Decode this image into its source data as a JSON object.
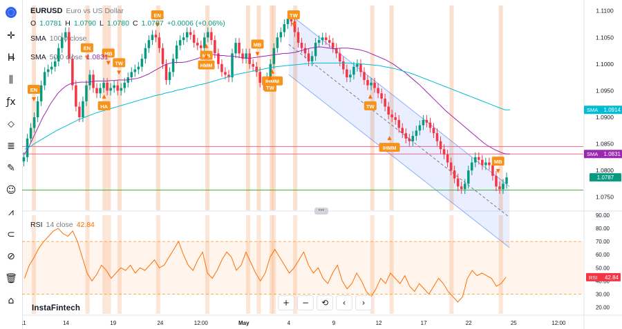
{
  "toolbar": {
    "items": [
      {
        "name": "crosshair-icon",
        "glyph": "✛"
      },
      {
        "name": "trend-line-icon",
        "glyph": "H̶"
      },
      {
        "name": "candles-icon",
        "glyph": "⫼"
      },
      {
        "name": "fx-icon",
        "glyph": "ƒx"
      },
      {
        "name": "shapes-icon",
        "glyph": "⬦"
      },
      {
        "name": "fib-icon",
        "glyph": "≣"
      },
      {
        "name": "brush-icon",
        "glyph": "✎"
      },
      {
        "name": "emoji-icon",
        "glyph": "☺"
      },
      {
        "name": "pattern-icon",
        "glyph": "⩘"
      },
      {
        "name": "magnet-icon",
        "glyph": "⊂"
      },
      {
        "name": "eye-off-icon",
        "glyph": "⊘"
      },
      {
        "name": "trash-icon",
        "glyph": "🗑"
      },
      {
        "name": "lock-icon",
        "glyph": "⌂"
      }
    ]
  },
  "legend": {
    "symbol": "EURUSD",
    "description": "Euro vs US Dollar",
    "o_label": "O",
    "o_value": "1.0781",
    "h_label": "H",
    "h_value": "1.0790",
    "l_label": "L",
    "l_value": "1.0780",
    "c_label": "C",
    "c_value": "1.0787",
    "change": "+0.0006 (+0.06%)",
    "sma100_label": "SMA",
    "sma100_params": "100 0 close",
    "sma50_label": "SMA",
    "sma50_params": "50 0 close",
    "sma50_value": "1.0831"
  },
  "rsi_legend": {
    "label": "RSI",
    "params": "14 close",
    "value": "42.84"
  },
  "brand": "InstaFintech",
  "nav": {
    "plus": "+",
    "minus": "−",
    "reset": "⟲",
    "left": "‹",
    "right": "›"
  },
  "colors": {
    "up": "#089981",
    "down": "#f23645",
    "sma50": "#9c27b0",
    "sma100": "#00bcd4",
    "rsi": "#ff6d00",
    "signal_fill": "#f7c7a8",
    "signal_label": "#f7931a",
    "channel": "#2962ff",
    "support": "#3eae2f",
    "resistance": "#f06292"
  },
  "chart_data": {
    "type": "candlestick",
    "price_axis": {
      "min": 1.0725,
      "max": 1.111,
      "ticks": [
        "1.1100",
        "1.1050",
        "1.1000",
        "1.0950",
        "1.0900",
        "1.0850",
        "1.0800",
        "1.0750"
      ]
    },
    "price_badges": [
      {
        "label": "SMA",
        "value": "1.0914",
        "color": "#00bcd4",
        "price": 1.0914
      },
      {
        "label": "SMA",
        "value": "1.0831",
        "color": "#9c27b0",
        "price": 1.0831
      },
      {
        "label": "",
        "value": "1.0787",
        "color": "#089981",
        "price": 1.0787
      }
    ],
    "x_axis_labels": [
      "11",
      "14",
      "19",
      "24",
      "12:00",
      "May",
      "4",
      "9",
      "12",
      "17",
      "22",
      "25",
      "12:00"
    ],
    "x_label_at": [
      0,
      20,
      42,
      64,
      83,
      103,
      124,
      145,
      166,
      187,
      208,
      229,
      250
    ],
    "x_span": 262,
    "closes": [
      1.0825,
      1.086,
      1.088,
      1.09,
      1.093,
      1.096,
      1.0985,
      1.099,
      1.0995,
      1.1005,
      1.103,
      1.105,
      1.106,
      1.101,
      1.096,
      1.092,
      1.09,
      1.093,
      1.096,
      1.098,
      1.0955,
      1.0945,
      1.0955,
      1.0965,
      1.095,
      1.0955,
      1.096,
      1.095,
      1.0955,
      1.0965,
      1.0975,
      1.0985,
      1.099,
      1.0995,
      1.101,
      1.103,
      1.1045,
      1.1055,
      1.105,
      1.103,
      1.1,
      1.097,
      1.0985,
      1.101,
      1.1035,
      1.1045,
      1.105,
      1.106,
      1.1055,
      1.104,
      1.1035,
      1.103,
      1.105,
      1.106,
      1.1045,
      1.102,
      1.1,
      1.0985,
      1.098,
      1.0975,
      1.102,
      1.104,
      1.102,
      1.101,
      1.102,
      1.1,
      1.0995,
      1.0985,
      1.0965,
      1.096,
      1.0975,
      1.1,
      1.103,
      1.105,
      1.106,
      1.1075,
      1.1085,
      1.108,
      1.106,
      1.104,
      1.103,
      1.102,
      1.1005,
      1.1015,
      1.104,
      1.1045,
      1.105,
      1.1045,
      1.104,
      1.103,
      1.102,
      1.1005,
      1.099,
      1.0975,
      1.098,
      1.0995,
      1.1,
      1.0985,
      1.097,
      1.096,
      1.0965,
      1.0955,
      1.0945,
      1.0935,
      1.092,
      1.0905,
      1.09,
      1.0895,
      1.088,
      1.087,
      1.086,
      1.0855,
      1.0865,
      1.0875,
      1.0885,
      1.0895,
      1.089,
      1.088,
      1.087,
      1.0855,
      1.084,
      1.083,
      1.0815,
      1.08,
      1.0785,
      1.077,
      1.0765,
      1.0775,
      1.08,
      1.0815,
      1.0825,
      1.082,
      1.081,
      1.0815,
      1.081,
      1.079,
      1.077,
      1.0765,
      1.0775,
      1.0787
    ],
    "sma50": [
      1.083,
      1.084,
      1.0855,
      1.087,
      1.0885,
      1.09,
      1.0912,
      1.0925,
      1.0935,
      1.0945,
      1.0952,
      1.0958,
      1.0962,
      1.0964,
      1.0965,
      1.0966,
      1.0966,
      1.0966,
      1.0967,
      1.0968,
      1.0968,
      1.0968,
      1.0968,
      1.0969,
      1.0969,
      1.097,
      1.097,
      1.097,
      1.0971,
      1.0972,
      1.0973,
      1.0975,
      1.0978,
      1.0981,
      1.0985,
      1.0989,
      1.0993,
      1.0997,
      1.1,
      1.1002,
      1.1003,
      1.1003,
      1.1003,
      1.1004,
      1.1006,
      1.1008,
      1.101,
      1.1013,
      1.1016,
      1.1018,
      1.1018,
      1.1017,
      1.1016,
      1.1016,
      1.1015,
      1.1015,
      1.1014,
      1.1013,
      1.1012,
      1.1011,
      1.1011,
      1.1012,
      1.1013,
      1.1014,
      1.1015,
      1.1016,
      1.1017,
      1.1018,
      1.1019,
      1.102,
      1.102,
      1.1021,
      1.1022,
      1.1024,
      1.1026,
      1.1028,
      1.103,
      1.1031,
      1.1032,
      1.1032,
      1.1031,
      1.103,
      1.1029,
      1.1029,
      1.103,
      1.103,
      1.103,
      1.1029,
      1.1028,
      1.1027,
      1.1025,
      1.1023,
      1.102,
      1.1017,
      1.1014,
      1.1011,
      1.1008,
      1.1004,
      1.1,
      1.0995,
      1.099,
      1.0985,
      1.0979,
      1.0973,
      1.0967,
      1.0961,
      1.0954,
      1.0947,
      1.094,
      1.0933,
      1.0926,
      1.0919,
      1.0912,
      1.0906,
      1.09,
      1.0894,
      1.0888,
      1.0882,
      1.0876,
      1.087,
      1.0864,
      1.0858,
      1.0852,
      1.0847,
      1.0843,
      1.0839,
      1.0836,
      1.0833,
      1.0831,
      1.0831
    ],
    "sma100": [
      1.084,
      1.0845,
      1.0852,
      1.0858,
      1.0864,
      1.087,
      1.0876,
      1.0881,
      1.0886,
      1.0891,
      1.0896,
      1.09,
      1.0904,
      1.0908,
      1.0911,
      1.0914,
      1.0917,
      1.092,
      1.0923,
      1.0926,
      1.0929,
      1.0932,
      1.0935,
      1.0938,
      1.0941,
      1.0943,
      1.0946,
      1.0948,
      1.0951,
      1.0953,
      1.0956,
      1.0958,
      1.0961,
      1.0963,
      1.0966,
      1.0969,
      1.0972,
      1.0975,
      1.0978,
      1.0981,
      1.0983,
      1.0985,
      1.0987,
      1.0989,
      1.0991,
      1.0993,
      1.0995,
      1.0996,
      1.0997,
      1.0998,
      1.0999,
      1.1,
      1.1001,
      1.1002,
      1.1002,
      1.1002,
      1.1002,
      1.1002,
      1.1002,
      1.1002,
      1.1001,
      1.1001,
      1.1,
      1.0999,
      1.0998,
      1.0997,
      1.0995,
      1.0993,
      1.0991,
      1.0988,
      1.0985,
      1.0982,
      1.0978,
      1.0974,
      1.097,
      1.0966,
      1.0962,
      1.0958,
      1.0954,
      1.095,
      1.0946,
      1.0942,
      1.0938,
      1.0934,
      1.093,
      1.0926,
      1.0922,
      1.0918,
      1.0914,
      1.0914
    ],
    "rsi": {
      "ylim": [
        15,
        90
      ],
      "ticks": [
        "90.00",
        "80.00",
        "70.00",
        "60.00",
        "50.00",
        "40.00",
        "30.00",
        "20.00"
      ],
      "levels": [
        70,
        30
      ],
      "values": [
        42,
        52,
        58,
        65,
        70,
        74,
        78,
        80,
        76,
        74,
        78,
        70,
        58,
        46,
        40,
        45,
        52,
        48,
        42,
        46,
        50,
        48,
        52,
        46,
        50,
        48,
        52,
        56,
        50,
        52,
        58,
        64,
        70,
        60,
        52,
        48,
        56,
        62,
        46,
        42,
        48,
        56,
        62,
        58,
        48,
        52,
        62,
        54,
        46,
        40,
        46,
        58,
        64,
        58,
        52,
        46,
        50,
        56,
        62,
        52,
        46,
        50,
        42,
        38,
        46,
        52,
        40,
        34,
        38,
        46,
        40,
        32,
        28,
        34,
        42,
        38,
        46,
        42,
        38,
        44,
        36,
        32,
        38,
        34,
        30,
        36,
        42,
        38,
        32,
        28,
        24,
        28,
        42,
        48,
        44,
        46,
        44,
        42,
        36,
        38,
        42.84
      ]
    },
    "channel": {
      "upper": [
        [
          124,
          1.1095
        ],
        [
          227,
          1.077
        ]
      ],
      "lower": [
        [
          124,
          1.098
        ],
        [
          227,
          1.0655
        ]
      ],
      "middle": [
        [
          124,
          1.1037
        ],
        [
          227,
          1.0712
        ]
      ]
    },
    "horizontal_lines": [
      {
        "price": 1.0845,
        "color": "#f06292"
      },
      {
        "price": 1.0831,
        "color": "#f06292"
      },
      {
        "price": 1.0763,
        "color": "#3eae2f"
      }
    ],
    "signals": [
      {
        "label": "EN",
        "bar": 5,
        "dir": "down"
      },
      {
        "label": "EN",
        "bar": 30,
        "dir": "down"
      },
      {
        "label": "HA",
        "bar": 38,
        "dir": "up"
      },
      {
        "label": "MB",
        "bar": 40,
        "dir": "down"
      },
      {
        "label": "TW",
        "bar": 45,
        "dir": "down"
      },
      {
        "label": "EN",
        "bar": 63,
        "dir": "down"
      },
      {
        "label": "MB",
        "bar": 86,
        "dir": "up"
      },
      {
        "label": "HMM",
        "bar": 86,
        "dir": "up"
      },
      {
        "label": "MB",
        "bar": 110,
        "dir": "down"
      },
      {
        "label": "IHMM",
        "bar": 117,
        "dir": "up"
      },
      {
        "label": "TW",
        "bar": 116,
        "dir": "up"
      },
      {
        "label": "TW",
        "bar": 127,
        "dir": "down"
      },
      {
        "label": "TW",
        "bar": 163,
        "dir": "up"
      },
      {
        "label": "IHMM",
        "bar": 172,
        "dir": "up"
      },
      {
        "label": "MB",
        "bar": 223,
        "dir": "down"
      }
    ],
    "signal_bars": [
      5,
      30,
      38,
      40,
      45,
      63,
      86,
      105,
      110,
      116,
      117,
      127,
      163,
      172,
      200,
      223
    ]
  }
}
